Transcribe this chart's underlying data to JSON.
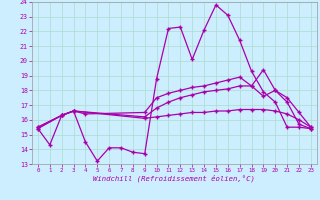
{
  "xlabel": "Windchill (Refroidissement éolien,°C)",
  "bg_color": "#cceeff",
  "grid_color": "#aaddcc",
  "line_color": "#aa00aa",
  "xlim": [
    -0.5,
    23.5
  ],
  "ylim": [
    13,
    24
  ],
  "yticks": [
    13,
    14,
    15,
    16,
    17,
    18,
    19,
    20,
    21,
    22,
    23,
    24
  ],
  "xticks": [
    0,
    1,
    2,
    3,
    4,
    5,
    6,
    7,
    8,
    9,
    10,
    11,
    12,
    13,
    14,
    15,
    16,
    17,
    18,
    19,
    20,
    21,
    22,
    23
  ],
  "line1_x": [
    0,
    1,
    2,
    3,
    4,
    5,
    6,
    7,
    8,
    9,
    10,
    11,
    12,
    13,
    14,
    15,
    16,
    17,
    18,
    19,
    20,
    21,
    22,
    23
  ],
  "line1_y": [
    15.4,
    14.3,
    16.3,
    16.6,
    14.5,
    13.2,
    14.1,
    14.1,
    13.8,
    13.7,
    18.8,
    22.2,
    22.3,
    20.1,
    22.1,
    23.8,
    23.1,
    21.4,
    19.3,
    17.9,
    17.2,
    15.5,
    15.5,
    15.4
  ],
  "line2_x": [
    0,
    2,
    3,
    4,
    9,
    10,
    11,
    12,
    13,
    14,
    15,
    16,
    17,
    18,
    19,
    20,
    21,
    22,
    23
  ],
  "line2_y": [
    15.4,
    16.3,
    16.6,
    16.4,
    16.5,
    17.5,
    17.8,
    18.0,
    18.2,
    18.3,
    18.5,
    18.7,
    18.9,
    18.3,
    17.6,
    18.0,
    17.5,
    16.5,
    15.5
  ],
  "line3_x": [
    0,
    2,
    3,
    9,
    10,
    11,
    12,
    13,
    14,
    15,
    16,
    17,
    18,
    19,
    20,
    21,
    22,
    23
  ],
  "line3_y": [
    15.5,
    16.3,
    16.6,
    16.2,
    16.8,
    17.2,
    17.5,
    17.7,
    17.9,
    18.0,
    18.1,
    18.3,
    18.3,
    19.4,
    18.0,
    17.2,
    15.7,
    15.4
  ],
  "line4_x": [
    0,
    2,
    3,
    9,
    10,
    11,
    12,
    13,
    14,
    15,
    16,
    17,
    18,
    19,
    20,
    21,
    22,
    23
  ],
  "line4_y": [
    15.5,
    16.3,
    16.6,
    16.1,
    16.2,
    16.3,
    16.4,
    16.5,
    16.5,
    16.6,
    16.6,
    16.7,
    16.7,
    16.7,
    16.6,
    16.4,
    16.0,
    15.5
  ]
}
